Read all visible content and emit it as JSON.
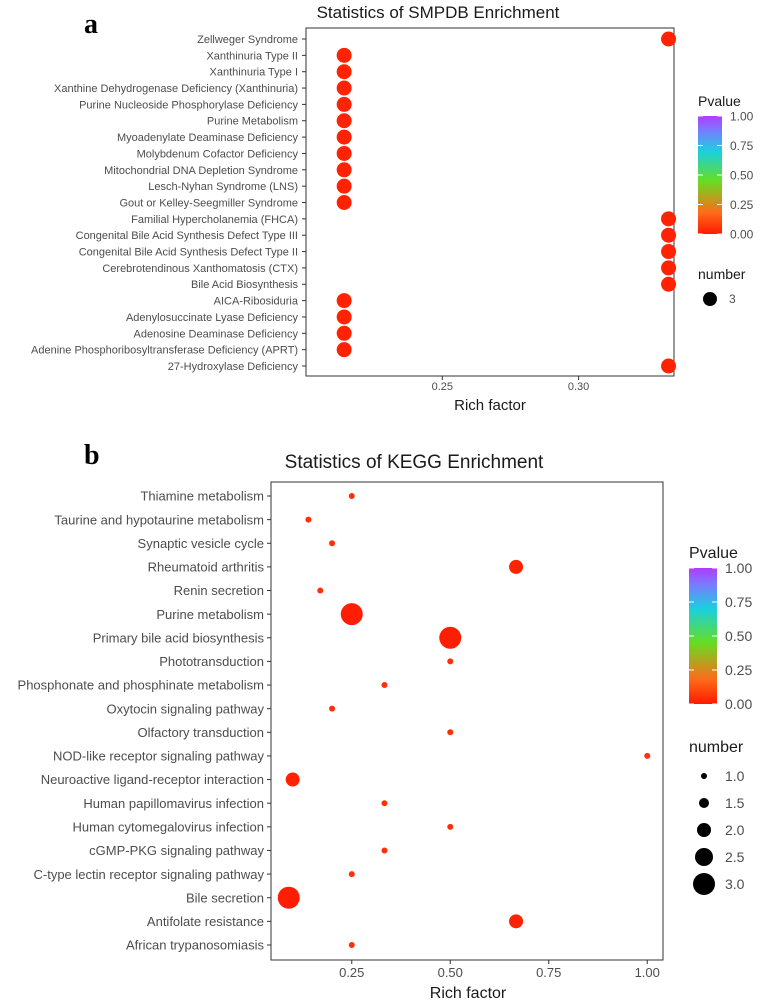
{
  "chart_data": [
    {
      "panel_label": "a",
      "type": "scatter",
      "title": "Statistics of SMPDB Enrichment",
      "xlabel": "Rich factor",
      "ylabel": "",
      "x_ticks": [
        0.25,
        0.3
      ],
      "x_tick_labels": [
        "0.25",
        "0.30"
      ],
      "xlim": [
        0.2,
        0.335
      ],
      "categories": [
        "Zellweger Syndrome",
        "Xanthinuria Type II",
        "Xanthinuria Type I",
        "Xanthine Dehydrogenase Deficiency (Xanthinuria)",
        "Purine Nucleoside Phosphorylase Deficiency",
        "Purine Metabolism",
        "Myoadenylate Deaminase Deficiency",
        "Molybdenum Cofactor Deficiency",
        "Mitochondrial DNA Depletion Syndrome",
        "Lesch-Nyhan Syndrome (LNS)",
        "Gout or Kelley-Seegmiller Syndrome",
        "Familial Hypercholanemia (FHCA)",
        "Congenital Bile Acid Synthesis Defect Type III",
        "Congenital Bile Acid Synthesis Defect Type II",
        "Cerebrotendinous Xanthomatosis (CTX)",
        "Bile Acid Biosynthesis",
        "AICA-Ribosiduria",
        "Adenylosuccinate Lyase Deficiency",
        "Adenosine Deaminase Deficiency",
        "Adenine Phosphoribosyltransferase Deficiency (APRT)",
        "27-Hydroxylase Deficiency"
      ],
      "points": [
        {
          "term": "Zellweger Syndrome",
          "x": 0.333,
          "number": 3,
          "pvalue": 0.02
        },
        {
          "term": "Xanthinuria Type II",
          "x": 0.214,
          "number": 3,
          "pvalue": 0.02
        },
        {
          "term": "Xanthinuria Type I",
          "x": 0.214,
          "number": 3,
          "pvalue": 0.02
        },
        {
          "term": "Xanthine Dehydrogenase Deficiency (Xanthinuria)",
          "x": 0.214,
          "number": 3,
          "pvalue": 0.02
        },
        {
          "term": "Purine Nucleoside Phosphorylase Deficiency",
          "x": 0.214,
          "number": 3,
          "pvalue": 0.02
        },
        {
          "term": "Purine Metabolism",
          "x": 0.214,
          "number": 3,
          "pvalue": 0.02
        },
        {
          "term": "Myoadenylate Deaminase Deficiency",
          "x": 0.214,
          "number": 3,
          "pvalue": 0.02
        },
        {
          "term": "Molybdenum Cofactor Deficiency",
          "x": 0.214,
          "number": 3,
          "pvalue": 0.02
        },
        {
          "term": "Mitochondrial DNA Depletion Syndrome",
          "x": 0.214,
          "number": 3,
          "pvalue": 0.02
        },
        {
          "term": "Lesch-Nyhan Syndrome (LNS)",
          "x": 0.214,
          "number": 3,
          "pvalue": 0.02
        },
        {
          "term": "Gout or Kelley-Seegmiller Syndrome",
          "x": 0.214,
          "number": 3,
          "pvalue": 0.02
        },
        {
          "term": "Familial Hypercholanemia (FHCA)",
          "x": 0.333,
          "number": 3,
          "pvalue": 0.02
        },
        {
          "term": "Congenital Bile Acid Synthesis Defect Type III",
          "x": 0.333,
          "number": 3,
          "pvalue": 0.02
        },
        {
          "term": "Congenital Bile Acid Synthesis Defect Type II",
          "x": 0.333,
          "number": 3,
          "pvalue": 0.02
        },
        {
          "term": "Cerebrotendinous Xanthomatosis (CTX)",
          "x": 0.333,
          "number": 3,
          "pvalue": 0.02
        },
        {
          "term": "Bile Acid Biosynthesis",
          "x": 0.333,
          "number": 3,
          "pvalue": 0.02
        },
        {
          "term": "AICA-Ribosiduria",
          "x": 0.214,
          "number": 3,
          "pvalue": 0.02
        },
        {
          "term": "Adenylosuccinate Lyase Deficiency",
          "x": 0.214,
          "number": 3,
          "pvalue": 0.02
        },
        {
          "term": "Adenosine Deaminase Deficiency",
          "x": 0.214,
          "number": 3,
          "pvalue": 0.02
        },
        {
          "term": "Adenine Phosphoribosyltransferase Deficiency (APRT)",
          "x": 0.214,
          "number": 3,
          "pvalue": 0.02
        },
        {
          "term": "27-Hydroxylase Deficiency",
          "x": 0.333,
          "number": 3,
          "pvalue": 0.02
        }
      ],
      "color_legend": {
        "title": "Pvalue",
        "ticks": [
          "1.00",
          "0.75",
          "0.50",
          "0.25",
          "0.00"
        ],
        "range": [
          0,
          1
        ]
      },
      "size_legend": {
        "title": "number",
        "values": [
          3
        ],
        "labels": [
          "3"
        ],
        "size_range": [
          3,
          3
        ]
      },
      "legend_position": "right",
      "grid": false
    },
    {
      "panel_label": "b",
      "type": "scatter",
      "title": "Statistics of KEGG Enrichment",
      "xlabel": "Rich factor",
      "ylabel": "",
      "x_ticks": [
        0.25,
        0.5,
        0.75,
        1.0
      ],
      "x_tick_labels": [
        "0.25",
        "0.50",
        "0.75",
        "1.00"
      ],
      "xlim": [
        0.045,
        1.04
      ],
      "categories": [
        "Thiamine metabolism",
        "Taurine and hypotaurine metabolism",
        "Synaptic vesicle cycle",
        "Rheumatoid arthritis",
        "Renin secretion",
        "Purine metabolism",
        "Primary bile acid biosynthesis",
        "Phototransduction",
        "Phosphonate and phosphinate metabolism",
        "Oxytocin signaling pathway",
        "Olfactory transduction",
        "NOD-like receptor signaling pathway",
        "Neuroactive ligand-receptor interaction",
        "Human papillomavirus infection",
        "Human cytomegalovirus infection",
        "cGMP-PKG signaling pathway",
        "C-type lectin receptor signaling pathway",
        "Bile secretion",
        "Antifolate resistance",
        "African trypanosomiasis"
      ],
      "points": [
        {
          "term": "Thiamine metabolism",
          "x": 0.25,
          "number": 1,
          "pvalue": 0.05
        },
        {
          "term": "Taurine and hypotaurine metabolism",
          "x": 0.14,
          "number": 1,
          "pvalue": 0.05
        },
        {
          "term": "Synaptic vesicle cycle",
          "x": 0.2,
          "number": 1,
          "pvalue": 0.05
        },
        {
          "term": "Rheumatoid arthritis",
          "x": 0.667,
          "number": 2,
          "pvalue": 0.02
        },
        {
          "term": "Renin secretion",
          "x": 0.17,
          "number": 1,
          "pvalue": 0.05
        },
        {
          "term": "Purine metabolism",
          "x": 0.25,
          "number": 3,
          "pvalue": 0.01
        },
        {
          "term": "Primary bile acid biosynthesis",
          "x": 0.5,
          "number": 3,
          "pvalue": 0.01
        },
        {
          "term": "Phototransduction",
          "x": 0.5,
          "number": 1,
          "pvalue": 0.05
        },
        {
          "term": "Phosphonate and phosphinate metabolism",
          "x": 0.333,
          "number": 1,
          "pvalue": 0.05
        },
        {
          "term": "Oxytocin signaling pathway",
          "x": 0.2,
          "number": 1,
          "pvalue": 0.05
        },
        {
          "term": "Olfactory transduction",
          "x": 0.5,
          "number": 1,
          "pvalue": 0.05
        },
        {
          "term": "NOD-like receptor signaling pathway",
          "x": 1.0,
          "number": 1,
          "pvalue": 0.05
        },
        {
          "term": "Neuroactive ligand-receptor interaction",
          "x": 0.1,
          "number": 2,
          "pvalue": 0.02
        },
        {
          "term": "Human papillomavirus infection",
          "x": 0.333,
          "number": 1,
          "pvalue": 0.05
        },
        {
          "term": "Human cytomegalovirus infection",
          "x": 0.5,
          "number": 1,
          "pvalue": 0.05
        },
        {
          "term": "cGMP-PKG signaling pathway",
          "x": 0.333,
          "number": 1,
          "pvalue": 0.05
        },
        {
          "term": "C-type lectin receptor signaling pathway",
          "x": 0.25,
          "number": 1,
          "pvalue": 0.05
        },
        {
          "term": "Bile secretion",
          "x": 0.09,
          "number": 3,
          "pvalue": 0.01
        },
        {
          "term": "Antifolate resistance",
          "x": 0.667,
          "number": 2,
          "pvalue": 0.02
        },
        {
          "term": "African trypanosomiasis",
          "x": 0.25,
          "number": 1,
          "pvalue": 0.05
        }
      ],
      "color_legend": {
        "title": "Pvalue",
        "ticks": [
          "1.00",
          "0.75",
          "0.50",
          "0.25",
          "0.00"
        ],
        "range": [
          0,
          1
        ]
      },
      "size_legend": {
        "title": "number",
        "values": [
          1.0,
          1.5,
          2.0,
          2.5,
          3.0
        ],
        "labels": [
          "1.0",
          "1.5",
          "2.0",
          "2.5",
          "3.0"
        ],
        "size_range": [
          1,
          3
        ]
      },
      "legend_position": "right",
      "grid": false
    }
  ],
  "colors": {
    "point_low_p": "#e8170e",
    "gradient": [
      "#ff0000",
      "#ff7a1a",
      "#7fe01a",
      "#17d0e6",
      "#8080ff",
      "#b23cff"
    ],
    "axis": "#333333",
    "label": "#4d4d4d"
  }
}
